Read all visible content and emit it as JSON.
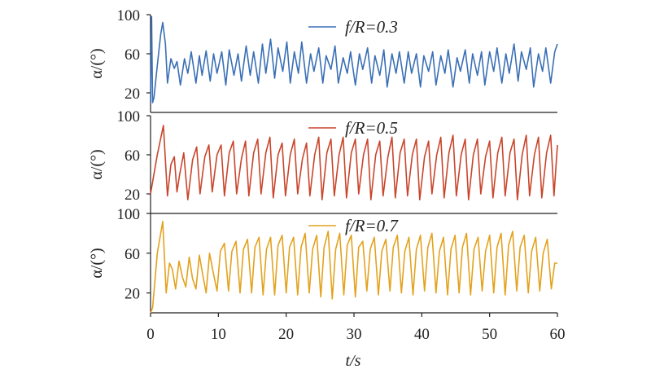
{
  "figure": {
    "x_axis_label": "t/s",
    "x_ticks": [
      "0",
      "10",
      "20",
      "30",
      "40",
      "50",
      "60"
    ]
  },
  "chart_data": [
    {
      "type": "line",
      "legend": "f/R=0.3",
      "color": "#3a6fb5",
      "xlim": [
        0,
        60
      ],
      "ylim": [
        0,
        100
      ],
      "ylabel": "α/(°)",
      "yticks": [
        "100",
        "60",
        "20"
      ],
      "x": [
        0,
        0.15,
        0.3,
        0.5,
        1,
        1.5,
        1.8,
        2.2,
        2.5,
        3,
        3.5,
        3.9,
        4.4,
        5,
        5.5,
        6,
        6.7,
        7.2,
        7.6,
        8.2,
        8.8,
        9.3,
        9.8,
        10.5,
        11.1,
        11.6,
        12.3,
        12.9,
        13.4,
        14.1,
        14.7,
        15.2,
        15.9,
        16.5,
        17,
        17.7,
        18.3,
        18.8,
        19.5,
        20.1,
        20.6,
        21.2,
        21.8,
        22.3,
        23,
        23.6,
        24.1,
        24.8,
        25.4,
        25.9,
        26.6,
        27.2,
        27.7,
        28.4,
        29,
        29.5,
        30.2,
        30.8,
        31.3,
        32,
        32.6,
        33.1,
        33.8,
        34.4,
        34.9,
        35.6,
        36.2,
        36.7,
        37.4,
        38,
        38.5,
        39.2,
        39.8,
        40.3,
        41,
        41.6,
        42.1,
        42.8,
        43.4,
        43.9,
        44.6,
        45.2,
        45.7,
        46.4,
        47,
        47.5,
        48.2,
        48.8,
        49.3,
        50,
        50.6,
        51.1,
        51.8,
        52.4,
        52.9,
        53.6,
        54.2,
        54.7,
        55.4,
        56,
        56.5,
        57.2,
        57.8,
        58.3,
        59,
        59.6,
        60
      ],
      "y": [
        10,
        98,
        10,
        15,
        48,
        80,
        92,
        70,
        30,
        55,
        45,
        52,
        28,
        55,
        40,
        62,
        30,
        58,
        38,
        63,
        32,
        60,
        40,
        62,
        28,
        64,
        38,
        60,
        32,
        68,
        38,
        62,
        30,
        70,
        40,
        75,
        35,
        66,
        42,
        72,
        30,
        62,
        40,
        72,
        30,
        60,
        42,
        66,
        30,
        58,
        44,
        68,
        30,
        56,
        40,
        62,
        28,
        60,
        44,
        66,
        30,
        58,
        38,
        64,
        26,
        60,
        40,
        62,
        30,
        62,
        40,
        60,
        26,
        58,
        42,
        62,
        28,
        58,
        40,
        64,
        26,
        56,
        42,
        64,
        30,
        60,
        38,
        62,
        28,
        62,
        42,
        66,
        30,
        60,
        40,
        70,
        32,
        62,
        44,
        66,
        26,
        60,
        42,
        66,
        30,
        62,
        70
      ]
    },
    {
      "type": "line",
      "legend": "f/R=0.5",
      "color": "#c9452b",
      "xlim": [
        0,
        60
      ],
      "ylim": [
        0,
        100
      ],
      "ylabel": "α/(°)",
      "yticks": [
        "100",
        "60",
        "20"
      ],
      "x": [
        0,
        1,
        1.9,
        2.5,
        3,
        3.5,
        3.9,
        4.3,
        4.9,
        5.5,
        6.2,
        6.8,
        7.3,
        8,
        8.6,
        9.1,
        9.8,
        10.4,
        10.9,
        11.6,
        12.2,
        12.7,
        13.4,
        14,
        14.5,
        15.2,
        15.8,
        16.3,
        17,
        17.6,
        18.1,
        18.8,
        19.4,
        19.9,
        20.6,
        21.2,
        21.7,
        22.4,
        23,
        23.5,
        24.2,
        24.8,
        25.3,
        26,
        26.6,
        27.1,
        27.8,
        28.4,
        28.9,
        29.6,
        30.2,
        30.7,
        31.4,
        32,
        32.5,
        33.2,
        33.8,
        34.3,
        35,
        35.6,
        36.1,
        36.8,
        37.4,
        37.9,
        38.6,
        39.2,
        39.7,
        40.4,
        41,
        41.5,
        42.2,
        42.8,
        43.3,
        44,
        44.6,
        45.1,
        45.8,
        46.4,
        46.9,
        47.6,
        48.2,
        48.7,
        49.4,
        50,
        50.5,
        51.2,
        51.8,
        52.3,
        53,
        53.6,
        54.1,
        54.8,
        55.4,
        55.9,
        56.6,
        57.2,
        57.7,
        58.4,
        59,
        59.5,
        60
      ],
      "y": [
        20,
        60,
        90,
        18,
        50,
        58,
        22,
        40,
        62,
        14,
        55,
        68,
        20,
        58,
        70,
        22,
        60,
        70,
        18,
        62,
        74,
        20,
        56,
        74,
        18,
        62,
        76,
        20,
        62,
        78,
        16,
        60,
        72,
        18,
        60,
        76,
        20,
        56,
        72,
        18,
        60,
        78,
        14,
        62,
        76,
        18,
        60,
        78,
        16,
        62,
        76,
        20,
        60,
        76,
        14,
        60,
        74,
        18,
        58,
        78,
        16,
        62,
        76,
        18,
        60,
        76,
        14,
        58,
        74,
        20,
        60,
        78,
        16,
        62,
        80,
        18,
        60,
        76,
        14,
        60,
        76,
        20,
        58,
        74,
        16,
        62,
        78,
        18,
        62,
        76,
        14,
        60,
        80,
        18,
        60,
        78,
        16,
        62,
        80,
        18,
        70
      ]
    },
    {
      "type": "line",
      "legend": "f/R=0.7",
      "color": "#e3a21e",
      "xlim": [
        0,
        60
      ],
      "ylim": [
        0,
        100
      ],
      "ylabel": "α/(°)",
      "yticks": [
        "100",
        "60",
        "20"
      ],
      "x": [
        0,
        0.3,
        1,
        1.8,
        2.3,
        2.8,
        3.2,
        3.7,
        4.2,
        4.7,
        5.2,
        5.7,
        6.2,
        6.7,
        7.2,
        7.7,
        8.2,
        8.7,
        9.2,
        9.8,
        10.3,
        10.9,
        11.5,
        12,
        12.6,
        13.2,
        13.7,
        14.3,
        14.9,
        15.4,
        16,
        16.6,
        17.1,
        17.7,
        18.3,
        18.8,
        19.4,
        20,
        20.5,
        21.1,
        21.7,
        22.2,
        22.8,
        23.4,
        23.9,
        24.5,
        25.1,
        25.6,
        26.2,
        26.8,
        27.3,
        27.9,
        28.5,
        29,
        29.6,
        30.2,
        30.7,
        31.3,
        31.9,
        32.4,
        33,
        33.6,
        34.1,
        34.7,
        35.3,
        35.8,
        36.4,
        37,
        37.5,
        38.1,
        38.7,
        39.2,
        39.8,
        40.4,
        40.9,
        41.5,
        42.1,
        42.6,
        43.2,
        43.8,
        44.3,
        44.9,
        45.5,
        46,
        46.6,
        47.2,
        47.7,
        48.3,
        48.9,
        49.4,
        50,
        50.6,
        51.1,
        51.7,
        52.3,
        52.8,
        53.4,
        54,
        54.5,
        55.1,
        55.7,
        56.2,
        56.8,
        57.4,
        57.9,
        58.5,
        59.1,
        59.6,
        60
      ],
      "y": [
        0,
        5,
        60,
        92,
        20,
        50,
        44,
        24,
        52,
        36,
        26,
        56,
        34,
        24,
        58,
        38,
        20,
        60,
        42,
        22,
        62,
        70,
        22,
        62,
        72,
        20,
        64,
        74,
        20,
        66,
        76,
        18,
        64,
        76,
        18,
        68,
        78,
        20,
        66,
        76,
        18,
        66,
        80,
        20,
        64,
        78,
        16,
        66,
        82,
        14,
        64,
        80,
        18,
        68,
        78,
        16,
        66,
        72,
        22,
        64,
        76,
        18,
        62,
        74,
        22,
        66,
        78,
        20,
        62,
        76,
        18,
        64,
        78,
        22,
        66,
        80,
        20,
        62,
        76,
        18,
        64,
        78,
        20,
        66,
        80,
        18,
        64,
        76,
        22,
        62,
        78,
        20,
        66,
        80,
        18,
        68,
        82,
        22,
        66,
        78,
        20,
        62,
        76,
        22,
        60,
        74,
        24,
        50,
        50
      ]
    }
  ]
}
